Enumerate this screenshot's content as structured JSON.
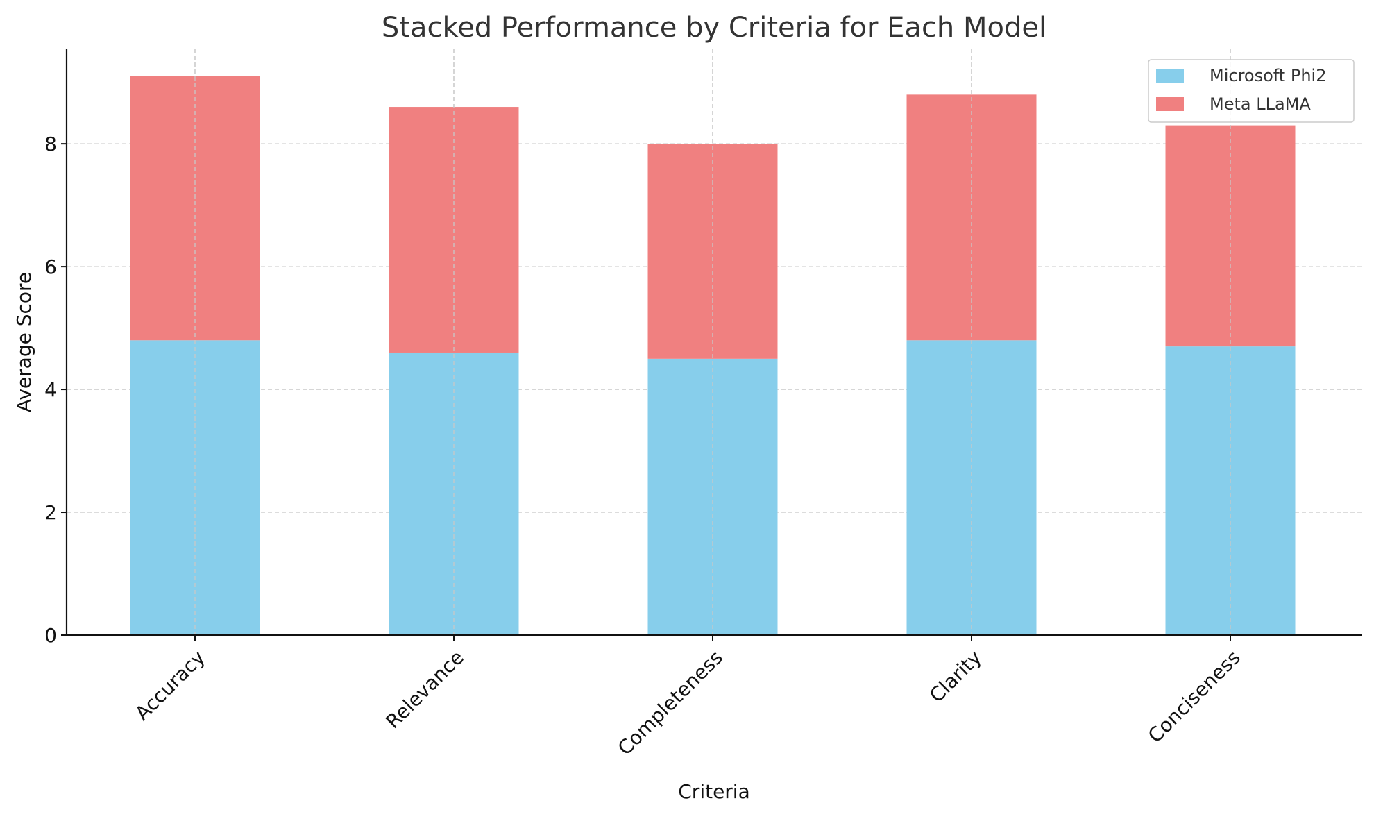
{
  "chart_data": {
    "type": "bar",
    "stacked": true,
    "title": "Stacked Performance by Criteria for Each Model",
    "xlabel": "Criteria",
    "ylabel": "Average Score",
    "categories": [
      "Accuracy",
      "Relevance",
      "Completeness",
      "Clarity",
      "Conciseness"
    ],
    "series": [
      {
        "name": "Microsoft Phi2",
        "values": [
          4.8,
          4.6,
          4.5,
          4.8,
          4.7
        ],
        "color": "#87CEEB"
      },
      {
        "name": "Meta LLaMA",
        "values": [
          4.3,
          4.0,
          3.5,
          4.0,
          3.6
        ],
        "color": "#F08080"
      }
    ],
    "ylim": [
      0,
      9.55
    ],
    "yticks": [
      0,
      2,
      4,
      6,
      8
    ],
    "grid": true,
    "legend_position": "top-right"
  }
}
